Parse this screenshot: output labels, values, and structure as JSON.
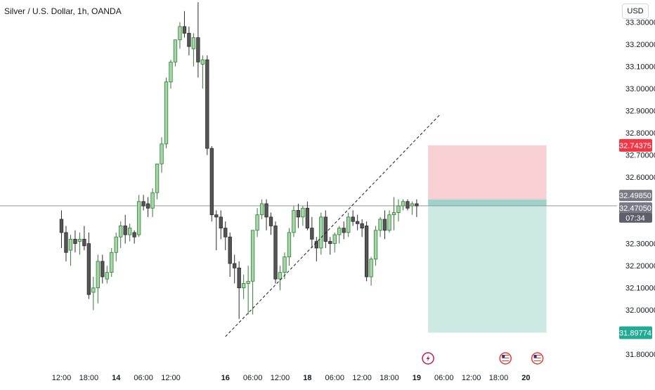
{
  "header": {
    "title": "Silver / U.S. Dollar, 1h, OANDA",
    "currency": "USD"
  },
  "colors": {
    "up": "#a5d6a7",
    "up_border": "#2e7d32",
    "down": "#555555",
    "down_border": "#2b2b2b",
    "stop_zone": "#f8d0d4",
    "target_zone": "#cde9e3",
    "entry_bar": "#9cd3c9",
    "stop_tag": "#f23645",
    "target_tag": "#22ab94",
    "price_tag": "#787b86",
    "countdown_tag": "#5d606b"
  },
  "chart_data": {
    "type": "candlestick",
    "title": "Silver / U.S. Dollar, 1h, OANDA",
    "ylim": [
      31.75,
      33.4
    ],
    "ytick_values": [
      31.8,
      31.9,
      32.0,
      32.1,
      32.2,
      32.3,
      32.4,
      32.5,
      32.6,
      32.7,
      32.8,
      32.9,
      33.0,
      33.1,
      33.2,
      33.3
    ],
    "ytick_labels": [
      "31.80000",
      "",
      "32.00000",
      "32.10000",
      "32.20000",
      "32.30000",
      "",
      "",
      "32.60000",
      "32.70000",
      "32.80000",
      "32.90000",
      "33.00000",
      "33.10000",
      "33.20000",
      "33.30000"
    ],
    "xlim": [
      -13.5,
      122
    ],
    "xticks": [
      {
        "x": 0,
        "label": "12:00"
      },
      {
        "x": 6,
        "label": "18:00"
      },
      {
        "x": 12,
        "label": "14"
      },
      {
        "x": 18,
        "label": "06:00"
      },
      {
        "x": 24,
        "label": "12:00"
      },
      {
        "x": 36,
        "label": "16"
      },
      {
        "x": 42,
        "label": "06:00"
      },
      {
        "x": 48,
        "label": "12:00"
      },
      {
        "x": 54,
        "label": "18"
      },
      {
        "x": 60,
        "label": "06:00"
      },
      {
        "x": 66,
        "label": "12:00"
      },
      {
        "x": 72,
        "label": "18:00"
      },
      {
        "x": 78,
        "label": "19"
      },
      {
        "x": 84,
        "label": "06:00"
      },
      {
        "x": 90,
        "label": "12:00"
      },
      {
        "x": 96,
        "label": "18:00"
      },
      {
        "x": 102,
        "label": "20"
      }
    ],
    "candles": [
      [
        32.41,
        32.45,
        32.28,
        32.35
      ],
      [
        32.35,
        32.38,
        32.22,
        32.26
      ],
      [
        32.27,
        32.34,
        32.2,
        32.32
      ],
      [
        32.32,
        32.36,
        32.26,
        32.3
      ],
      [
        32.31,
        32.35,
        32.25,
        32.32
      ],
      [
        32.32,
        32.38,
        32.27,
        32.29
      ],
      [
        32.3,
        32.35,
        32.05,
        32.07
      ],
      [
        32.08,
        32.15,
        32.0,
        32.1
      ],
      [
        32.1,
        32.25,
        32.03,
        32.22
      ],
      [
        32.22,
        32.25,
        32.12,
        32.15
      ],
      [
        32.14,
        32.2,
        32.12,
        32.17
      ],
      [
        32.17,
        32.28,
        32.15,
        32.26
      ],
      [
        32.26,
        32.35,
        32.22,
        32.33
      ],
      [
        32.33,
        32.4,
        32.28,
        32.38
      ],
      [
        32.38,
        32.43,
        32.3,
        32.34
      ],
      [
        32.34,
        32.39,
        32.31,
        32.37
      ],
      [
        32.35,
        32.36,
        32.3,
        32.33
      ],
      [
        32.34,
        32.52,
        32.33,
        32.49
      ],
      [
        32.49,
        32.52,
        32.45,
        32.47
      ],
      [
        32.48,
        32.51,
        32.42,
        32.46
      ],
      [
        32.46,
        32.55,
        32.42,
        32.53
      ],
      [
        32.53,
        32.66,
        32.5,
        32.66
      ],
      [
        32.66,
        32.78,
        32.62,
        32.75
      ],
      [
        32.75,
        33.05,
        32.73,
        33.03
      ],
      [
        33.03,
        33.13,
        33.0,
        33.12
      ],
      [
        33.12,
        33.22,
        33.1,
        33.22
      ],
      [
        33.22,
        33.3,
        33.18,
        33.28
      ],
      [
        33.28,
        33.35,
        33.23,
        33.25
      ],
      [
        33.25,
        33.28,
        33.15,
        33.19
      ],
      [
        33.18,
        33.25,
        33.1,
        33.23
      ],
      [
        33.23,
        33.39,
        33.05,
        33.12
      ],
      [
        33.11,
        33.15,
        33.0,
        33.13
      ],
      [
        33.13,
        33.15,
        32.7,
        32.73
      ],
      [
        32.73,
        32.74,
        32.4,
        32.43
      ],
      [
        32.43,
        32.45,
        32.27,
        32.42
      ],
      [
        32.42,
        32.45,
        32.32,
        32.37
      ],
      [
        32.37,
        32.4,
        32.27,
        32.33
      ],
      [
        32.33,
        32.35,
        32.15,
        32.21
      ],
      [
        32.21,
        32.25,
        32.12,
        32.19
      ],
      [
        32.19,
        32.22,
        31.96,
        32.1
      ],
      [
        32.1,
        32.16,
        32.05,
        32.12
      ],
      [
        32.12,
        32.2,
        31.98,
        32.13
      ],
      [
        32.13,
        32.36,
        31.98,
        32.36
      ],
      [
        32.36,
        32.46,
        32.33,
        32.43
      ],
      [
        32.43,
        32.5,
        32.41,
        32.48
      ],
      [
        32.48,
        32.5,
        32.36,
        32.42
      ],
      [
        32.42,
        32.44,
        32.34,
        32.38
      ],
      [
        32.38,
        32.4,
        32.12,
        32.14
      ],
      [
        32.14,
        32.2,
        32.09,
        32.17
      ],
      [
        32.17,
        32.26,
        32.14,
        32.24
      ],
      [
        32.24,
        32.37,
        32.2,
        32.35
      ],
      [
        32.35,
        32.47,
        32.33,
        32.45
      ],
      [
        32.45,
        32.48,
        32.37,
        32.42
      ],
      [
        32.42,
        32.47,
        32.38,
        32.46
      ],
      [
        32.46,
        32.49,
        32.36,
        32.37
      ],
      [
        32.37,
        32.42,
        32.28,
        32.32
      ],
      [
        32.31,
        32.33,
        32.22,
        32.28
      ],
      [
        32.28,
        32.44,
        32.25,
        32.42
      ],
      [
        32.42,
        32.45,
        32.28,
        32.31
      ],
      [
        32.31,
        32.33,
        32.25,
        32.3
      ],
      [
        32.3,
        32.35,
        32.26,
        32.34
      ],
      [
        32.34,
        32.38,
        32.3,
        32.37
      ],
      [
        32.37,
        32.4,
        32.32,
        32.35
      ],
      [
        32.35,
        32.44,
        32.33,
        32.42
      ],
      [
        32.42,
        32.45,
        32.38,
        32.4
      ],
      [
        32.4,
        32.43,
        32.36,
        32.39
      ],
      [
        32.39,
        32.41,
        32.33,
        32.37
      ],
      [
        32.38,
        32.4,
        32.13,
        32.15
      ],
      [
        32.15,
        32.24,
        32.11,
        32.23
      ],
      [
        32.23,
        32.38,
        32.2,
        32.36
      ],
      [
        32.36,
        32.42,
        32.33,
        32.41
      ],
      [
        32.41,
        32.45,
        32.32,
        32.36
      ],
      [
        32.36,
        32.45,
        32.35,
        32.43
      ],
      [
        32.43,
        32.51,
        32.36,
        32.44
      ],
      [
        32.44,
        32.5,
        32.4,
        32.47
      ],
      [
        32.47,
        32.5,
        32.45,
        32.49
      ],
      [
        32.49,
        32.5,
        32.45,
        32.46
      ],
      [
        32.47,
        32.49,
        32.43,
        32.48
      ],
      [
        32.48,
        32.5,
        32.42,
        32.47
      ]
    ],
    "trendline": {
      "x": [
        36,
        83
      ],
      "y": [
        31.88,
        32.88
      ]
    },
    "position": {
      "x_start": 80.5,
      "x_end": 106.5,
      "entry": 32.4985,
      "stop": 32.74375,
      "target": 31.89774
    },
    "price_labels": {
      "stop": "32.74375",
      "entry": "32.49850",
      "current": "32.47050",
      "countdown": "07:34",
      "target": "31.89774"
    },
    "current_price": 32.4705,
    "event_markers": [
      {
        "x": 80.5,
        "type": "lightning-icon"
      },
      {
        "x": 97.5,
        "type": "us-flag-icon"
      },
      {
        "x": 104.5,
        "type": "us-flag-icon"
      }
    ]
  }
}
